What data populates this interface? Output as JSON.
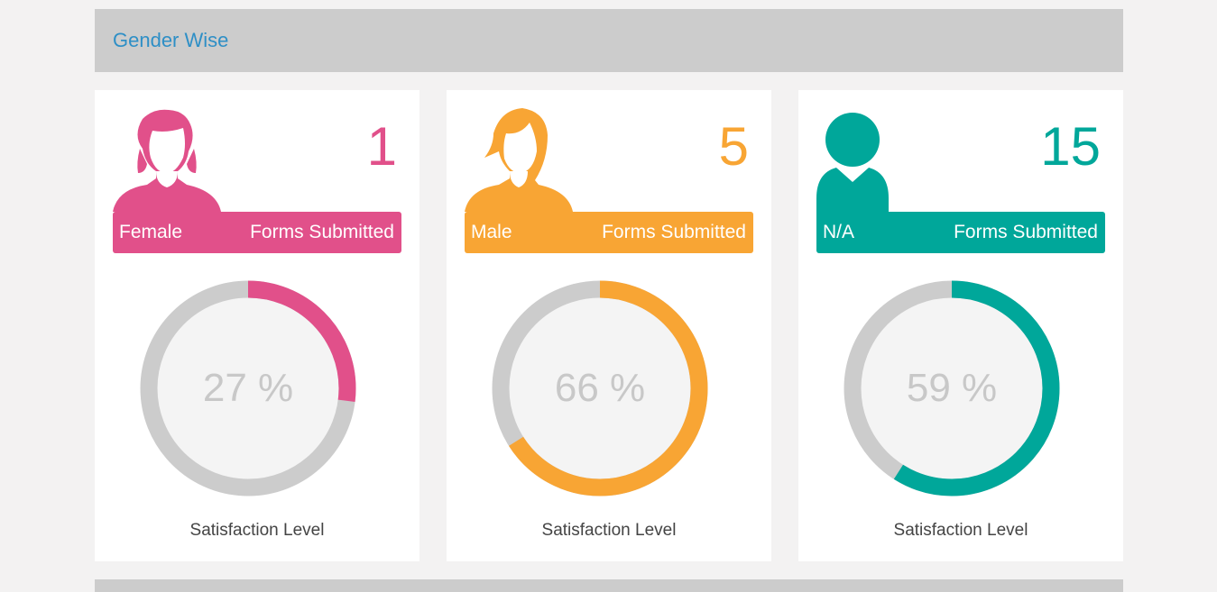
{
  "section": {
    "title": "Gender Wise"
  },
  "cards": [
    {
      "gender": "Female",
      "count": "1",
      "forms_label": "Forms Submitted",
      "percent": 27,
      "percent_text": "27 %",
      "satisfaction_label": "Satisfaction Level",
      "color": "#e1508a",
      "icon": "female-avatar-icon"
    },
    {
      "gender": "Male",
      "count": "5",
      "forms_label": "Forms Submitted",
      "percent": 66,
      "percent_text": "66 %",
      "satisfaction_label": "Satisfaction Level",
      "color": "#f8a534",
      "icon": "male-avatar-icon"
    },
    {
      "gender": "N/A",
      "count": "15",
      "forms_label": "Forms Submitted",
      "percent": 59,
      "percent_text": "59 %",
      "satisfaction_label": "Satisfaction Level",
      "color": "#00a79a",
      "icon": "person-avatar-icon"
    }
  ],
  "colors": {
    "track": "#cccccc",
    "gauge_fill": "#f4f4f4"
  }
}
